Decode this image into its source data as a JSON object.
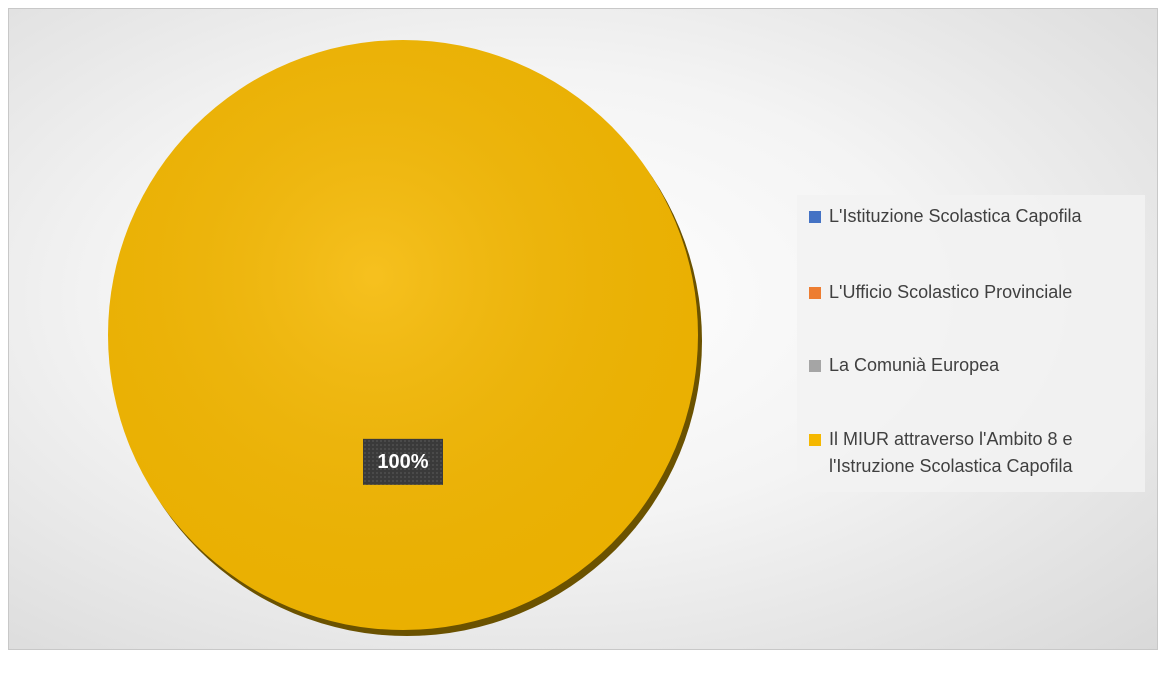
{
  "chart_data": {
    "type": "pie",
    "categories": [
      "L'Istituzione Scolastica Capofila",
      "L'Ufficio Scolastico Provinciale",
      "La Comunià Europea",
      "Il MIUR attraverso l'Ambito 8 e l'Istruzione Scolastica Capofila"
    ],
    "values": [
      0,
      0,
      0,
      100
    ],
    "value_labels": [
      null,
      null,
      null,
      "100%"
    ],
    "colors": [
      "#4472c4",
      "#ed7d31",
      "#a5a5a5",
      "#f5b800"
    ],
    "legend": "right"
  }
}
